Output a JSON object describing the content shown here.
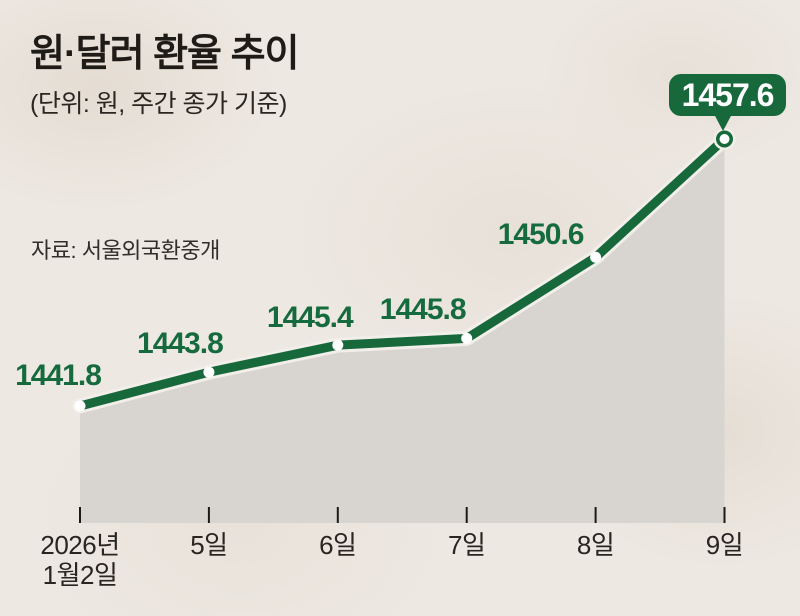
{
  "title": "원·달러 환율 추이",
  "subtitle": "(단위: 원, 주간 종가 기준)",
  "source": "자료: 서울외국환중개",
  "colors": {
    "background": "#ede8e2",
    "line_green": "#17693c",
    "label_green": "#156b3d",
    "area_fill": "#d8d5d0",
    "line_casing": "#f2eee9",
    "tick_black": "#1c1916",
    "badge_text": "#ffffff"
  },
  "chart_data": {
    "type": "line",
    "title": "원·달러 환율 추이",
    "unit": "원",
    "categories": [
      "2026년 1월2일",
      "5일",
      "6일",
      "7일",
      "8일",
      "9일"
    ],
    "x_tick_labels": [
      [
        "2026년",
        "1월2일"
      ],
      [
        "5일"
      ],
      [
        "6일"
      ],
      [
        "7일"
      ],
      [
        "8일"
      ],
      [
        "9일"
      ]
    ],
    "values": [
      1441.8,
      1443.8,
      1445.4,
      1445.8,
      1450.6,
      1457.6
    ],
    "value_labels": [
      "1441.8",
      "1443.8",
      "1445.4",
      "1445.8",
      "1450.6"
    ],
    "highlight": {
      "index": 5,
      "label": "1457.6"
    },
    "area": true,
    "grid": false,
    "legend": false,
    "ylim": [
      1435,
      1460
    ]
  }
}
